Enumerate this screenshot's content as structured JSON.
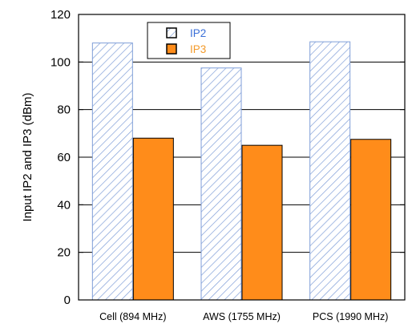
{
  "chart_data": {
    "type": "bar",
    "categories": [
      "Cell (894 MHz)",
      "AWS (1755 MHz)",
      "PCS (1990 MHz)"
    ],
    "series": [
      {
        "name": "IP2",
        "values": [
          108,
          97.5,
          108.5
        ]
      },
      {
        "name": "IP3",
        "values": [
          68,
          65,
          67.5
        ]
      }
    ],
    "ylabel": "Input IP2 and IP3 (dBm)",
    "ylim": [
      0,
      120
    ],
    "yticks": [
      0,
      20,
      40,
      60,
      80,
      100,
      120
    ],
    "grid": "horizontal",
    "legend_position": "top-left",
    "colors": {
      "ip2_hatch": "#7f9ed8",
      "ip2_text": "#3a6fd8",
      "ip3_fill": "#ff8c1a",
      "ip3_text": "#f39a2a",
      "axis": "#000000"
    }
  }
}
